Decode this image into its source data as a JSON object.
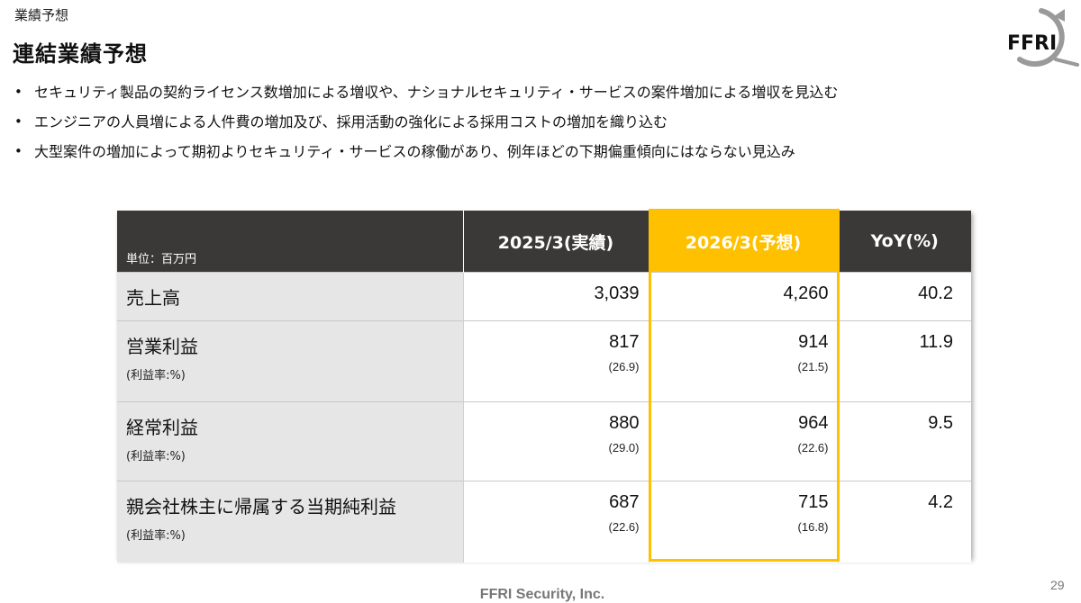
{
  "header": {
    "section_label": "業績予想",
    "page_title": "連結業績予想",
    "logo_text": "FFRI"
  },
  "bullets": [
    "セキュリティ製品の契約ライセンス数増加による増収や、ナショナルセキュリティ・サービスの案件増加による増収を見込む",
    "エンジニアの人員増による人件費の増加及び、採用活動の強化による採用コストの増加を織り込む",
    "大型案件の増加によって期初よりセキュリティ・サービスの稼働があり、例年ほどの下期偏重傾向にはならない見込み"
  ],
  "table": {
    "unit_label": "単位：百万円",
    "columns": [
      "2025/3(実績)",
      "2026/3(予想)",
      "YoY(%)"
    ],
    "rows": [
      {
        "label": "売上高",
        "sublabel": "",
        "actual": "3,039",
        "actual_sub": "",
        "forecast": "4,260",
        "forecast_sub": "",
        "yoy": "40.2"
      },
      {
        "label": "営業利益",
        "sublabel": "(利益率:%)",
        "actual": "817",
        "actual_sub": "(26.9)",
        "forecast": "914",
        "forecast_sub": "(21.5)",
        "yoy": "11.9"
      },
      {
        "label": "経常利益",
        "sublabel": "(利益率:%)",
        "actual": "880",
        "actual_sub": "(29.0)",
        "forecast": "964",
        "forecast_sub": "(22.6)",
        "yoy": "9.5"
      },
      {
        "label": "親会社株主に帰属する当期純利益",
        "sublabel": "(利益率:%)",
        "actual": "687",
        "actual_sub": "(22.6)",
        "forecast": "715",
        "forecast_sub": "(16.8)",
        "yoy": "4.2"
      }
    ]
  },
  "colors": {
    "header_dark": "#3b3838",
    "forecast_accent": "#ffc000",
    "label_bg": "#e7e6e6"
  },
  "footer": {
    "company": "FFRI Security, Inc.",
    "page_number": "29"
  }
}
